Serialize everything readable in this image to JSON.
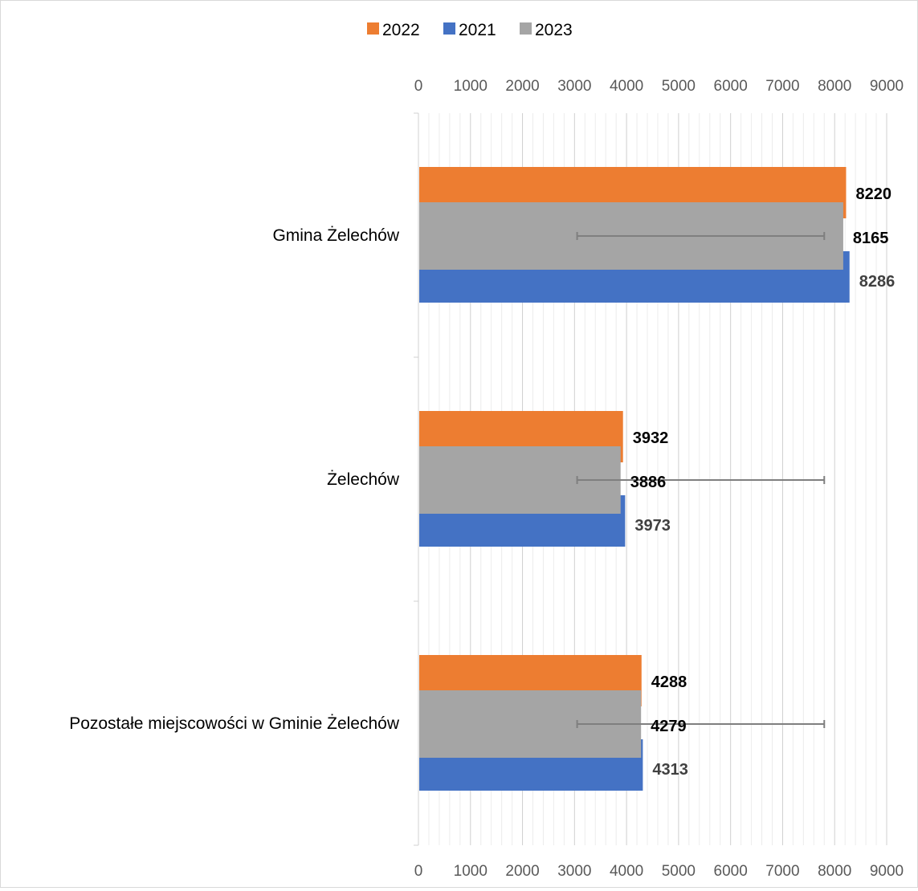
{
  "chart_data": {
    "type": "bar",
    "orientation": "horizontal",
    "categories": [
      "Gmina Żelechów",
      "Żelechów",
      "Pozostałe miejscowości w Gminie Żelechów"
    ],
    "series": [
      {
        "name": "2022",
        "values": [
          8220,
          3932,
          4288
        ],
        "color": "#ED7D31",
        "label_color": "#000000"
      },
      {
        "name": "2021",
        "values": [
          8286,
          3973,
          4313
        ],
        "color": "#4472C4",
        "label_color": "#404040"
      },
      {
        "name": "2023",
        "values": [
          8165,
          3886,
          4279
        ],
        "color": "#A5A5A5",
        "label_color": "#000000",
        "error_bar": {
          "low": 3050,
          "high": 7800
        }
      }
    ],
    "legend": {
      "position": "top",
      "order": [
        "2022",
        "2021",
        "2023"
      ]
    },
    "xlim": [
      0,
      9000
    ],
    "major_ticks": [
      0,
      1000,
      2000,
      3000,
      4000,
      5000,
      6000,
      7000,
      8000,
      9000
    ],
    "tick_labels": [
      "0",
      "1000",
      "2000",
      "3000",
      "4000",
      "5000",
      "6000",
      "7000",
      "8000",
      "9000"
    ],
    "minor_step": 200,
    "axis_labels_top": true,
    "axis_labels_bottom": true,
    "grid": true,
    "title": "",
    "xlabel": "",
    "ylabel": ""
  }
}
